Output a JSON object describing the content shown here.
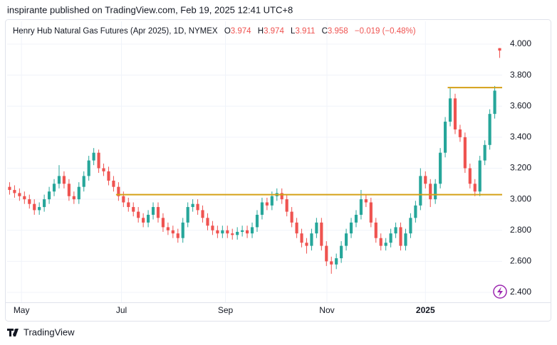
{
  "header": {
    "published": "inspirante published on TradingView.com, Feb 19, 2025 12:41 UTC+8"
  },
  "footer": {
    "brand": "TradingView"
  },
  "chart_data": {
    "type": "candlestick",
    "title": "Henry Hub Natural Gas Futures (Apr 2025), 1D, NYMEX",
    "ohlc_labels": [
      "O",
      "H",
      "L",
      "C"
    ],
    "change": "−0.019 (−0.48%)",
    "up_color": "#26a69a",
    "down_color": "#ef5350",
    "open": [
      3.08,
      3.06,
      3.04,
      3.02,
      3.0,
      2.97,
      2.93,
      2.95,
      3.0,
      3.05,
      3.1,
      3.15,
      3.1,
      3.02,
      3.0,
      3.08,
      3.15,
      3.25,
      3.3,
      3.2,
      3.18,
      3.12,
      3.08,
      3.02,
      2.98,
      2.95,
      2.92,
      2.88,
      2.85,
      2.9,
      2.95,
      2.88,
      2.82,
      2.8,
      2.78,
      2.75,
      2.85,
      2.95,
      2.97,
      2.93,
      2.88,
      2.83,
      2.8,
      2.78,
      2.8,
      2.78,
      2.77,
      2.79,
      2.8,
      2.78,
      2.82,
      2.9,
      2.98,
      2.96,
      3.02,
      3.04,
      3.0,
      2.92,
      2.85,
      2.78,
      2.72,
      2.7,
      2.78,
      2.85,
      2.7,
      2.6,
      2.58,
      2.62,
      2.7,
      2.78,
      2.85,
      2.9,
      3.0,
      2.98,
      2.85,
      2.75,
      2.7,
      2.72,
      2.78,
      2.82,
      2.7,
      2.78,
      2.88,
      2.96,
      3.15,
      3.1,
      3.0,
      3.1,
      3.3,
      3.5,
      3.65,
      3.45,
      3.4,
      3.2,
      3.1,
      3.05,
      3.25,
      3.35,
      3.55,
      3.974
    ],
    "high": [
      3.11,
      3.09,
      3.07,
      3.05,
      3.03,
      3.0,
      2.98,
      3.03,
      3.08,
      3.13,
      3.22,
      3.18,
      3.13,
      3.05,
      3.11,
      3.18,
      3.28,
      3.33,
      3.32,
      3.23,
      3.21,
      3.15,
      3.11,
      3.05,
      3.01,
      2.98,
      2.95,
      2.91,
      2.93,
      2.98,
      2.98,
      2.91,
      2.85,
      2.83,
      2.81,
      2.88,
      2.98,
      3.0,
      3.0,
      2.96,
      2.91,
      2.86,
      2.83,
      2.83,
      2.83,
      2.81,
      2.82,
      2.83,
      2.83,
      2.85,
      2.93,
      3.01,
      3.01,
      3.05,
      3.07,
      3.07,
      3.03,
      2.95,
      2.88,
      2.81,
      2.75,
      2.81,
      2.88,
      2.88,
      2.73,
      2.63,
      2.65,
      2.73,
      2.81,
      2.88,
      2.93,
      3.06,
      3.03,
      3.01,
      2.88,
      2.78,
      2.75,
      2.81,
      2.85,
      2.85,
      2.81,
      2.91,
      2.99,
      3.2,
      3.18,
      3.13,
      3.13,
      3.33,
      3.53,
      3.72,
      3.68,
      3.48,
      3.43,
      3.23,
      3.13,
      3.28,
      3.38,
      3.58,
      3.73,
      3.974
    ],
    "low": [
      3.03,
      3.01,
      2.99,
      2.97,
      2.94,
      2.9,
      2.9,
      2.92,
      2.97,
      3.02,
      3.07,
      3.07,
      2.99,
      2.97,
      2.97,
      3.05,
      3.12,
      3.22,
      3.17,
      3.15,
      3.09,
      3.05,
      2.99,
      2.95,
      2.92,
      2.89,
      2.85,
      2.82,
      2.82,
      2.87,
      2.85,
      2.79,
      2.77,
      2.75,
      2.72,
      2.72,
      2.82,
      2.92,
      2.9,
      2.85,
      2.8,
      2.77,
      2.75,
      2.75,
      2.75,
      2.74,
      2.74,
      2.76,
      2.75,
      2.75,
      2.79,
      2.87,
      2.93,
      2.93,
      2.99,
      2.97,
      2.89,
      2.82,
      2.75,
      2.69,
      2.65,
      2.67,
      2.75,
      2.67,
      2.57,
      2.52,
      2.55,
      2.59,
      2.67,
      2.75,
      2.82,
      2.87,
      2.95,
      2.82,
      2.72,
      2.67,
      2.67,
      2.69,
      2.75,
      2.67,
      2.67,
      2.75,
      2.85,
      2.93,
      3.07,
      2.95,
      2.97,
      3.07,
      3.27,
      3.47,
      3.42,
      3.37,
      3.17,
      3.07,
      3.02,
      3.02,
      3.22,
      3.32,
      3.52,
      3.911
    ],
    "close": [
      3.06,
      3.04,
      3.02,
      3.0,
      2.97,
      2.93,
      2.95,
      3.0,
      3.05,
      3.1,
      3.15,
      3.1,
      3.02,
      3.0,
      3.08,
      3.15,
      3.25,
      3.3,
      3.2,
      3.18,
      3.12,
      3.08,
      3.02,
      2.98,
      2.95,
      2.92,
      2.88,
      2.85,
      2.9,
      2.95,
      2.88,
      2.82,
      2.8,
      2.78,
      2.75,
      2.85,
      2.95,
      2.97,
      2.93,
      2.88,
      2.83,
      2.8,
      2.78,
      2.8,
      2.78,
      2.77,
      2.79,
      2.8,
      2.78,
      2.82,
      2.9,
      2.98,
      2.96,
      3.02,
      3.04,
      3.0,
      2.92,
      2.85,
      2.78,
      2.72,
      2.7,
      2.78,
      2.85,
      2.7,
      2.6,
      2.58,
      2.62,
      2.7,
      2.78,
      2.85,
      2.9,
      3.0,
      2.98,
      2.85,
      2.75,
      2.7,
      2.72,
      2.78,
      2.82,
      2.7,
      2.78,
      2.88,
      2.96,
      3.15,
      3.1,
      3.0,
      3.1,
      3.3,
      3.5,
      3.65,
      3.45,
      3.4,
      3.2,
      3.1,
      3.05,
      3.25,
      3.35,
      3.55,
      3.7,
      3.958
    ],
    "hlines": [
      {
        "value": 3.03,
        "start": 22,
        "color": "#d4a017"
      },
      {
        "value": 3.72,
        "start": 89,
        "color": "#d4a017"
      }
    ],
    "xlim": [
      0,
      100
    ],
    "xticks": [
      {
        "value": 2.9,
        "label": "May"
      },
      {
        "value": 23.1,
        "label": "Jul"
      },
      {
        "value": 44.1,
        "label": "Sep"
      },
      {
        "value": 64.6,
        "label": "Nov"
      },
      {
        "value": 84.5,
        "label": "2025"
      }
    ],
    "ylim": [
      2.336,
      4.032
    ],
    "yticks": [
      {
        "value": 2.4,
        "label": "2.400"
      },
      {
        "value": 2.6,
        "label": "2.600"
      },
      {
        "value": 2.8,
        "label": "2.800"
      },
      {
        "value": 3.0,
        "label": "3.000"
      },
      {
        "value": 3.2,
        "label": "3.200"
      },
      {
        "value": 3.4,
        "label": "3.400"
      },
      {
        "value": 3.6,
        "label": "3.600"
      },
      {
        "value": 3.8,
        "label": "3.800"
      },
      {
        "value": 4.0,
        "label": "4.000"
      }
    ],
    "grid": true
  }
}
